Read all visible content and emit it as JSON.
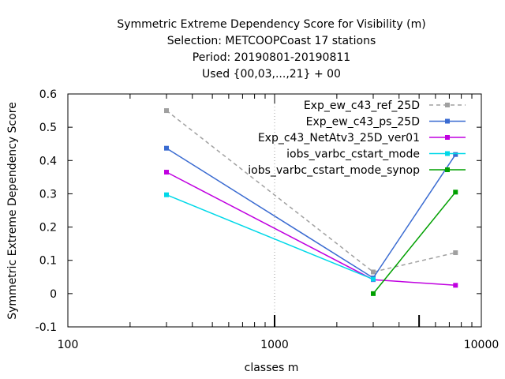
{
  "chart_data": {
    "type": "line",
    "title_lines": [
      "Symmetric Extreme Dependency Score  for Visibility (m)",
      "Selection: METCOOPCoast     17 stations",
      "Period: 20190801-20190811",
      "Used {00,03,...,21} + 00"
    ],
    "xlabel": "classes m",
    "ylabel": "Symmetric Extreme Dependency Score",
    "x_scale": "log",
    "xlim": [
      100,
      10000
    ],
    "ylim": [
      -0.1,
      0.6
    ],
    "x_ticks": [
      100,
      1000,
      10000
    ],
    "x_tick_labels": [
      "100",
      "1000",
      "10000"
    ],
    "y_ticks": [
      -0.1,
      0,
      0.1,
      0.2,
      0.3,
      0.4,
      0.5,
      0.6
    ],
    "y_tick_labels": [
      "-0.1",
      "0",
      "0.1",
      "0.2",
      "0.3",
      "0.4",
      "0.5",
      "0.6"
    ],
    "grid": "vertical dotted line at 1000",
    "legend_position": "top-right",
    "series": [
      {
        "name": "Exp_ew_c43_ref_25D",
        "color": "#a0a0a0",
        "dashed": true,
        "x": [
          300,
          3000,
          7500
        ],
        "y": [
          0.55,
          0.065,
          0.123
        ]
      },
      {
        "name": "Exp_ew_c43_ps_25D",
        "color": "#3a6bd1",
        "dashed": false,
        "x": [
          300,
          3000,
          7500
        ],
        "y": [
          0.437,
          0.047,
          0.418
        ]
      },
      {
        "name": "Exp_c43_NetAtv3_25D_ver01",
        "color": "#c000e0",
        "dashed": false,
        "x": [
          300,
          3000,
          7500
        ],
        "y": [
          0.365,
          0.042,
          0.025
        ]
      },
      {
        "name": "iobs_varbc_cstart_mode",
        "color": "#00d8e8",
        "dashed": false,
        "x": [
          300,
          3000
        ],
        "y": [
          0.297,
          0.043
        ]
      },
      {
        "name": "iobs_varbc_cstart_mode_synop",
        "color": "#00a000",
        "dashed": false,
        "x": [
          3000,
          7500
        ],
        "y": [
          0.0,
          0.305
        ]
      }
    ]
  }
}
